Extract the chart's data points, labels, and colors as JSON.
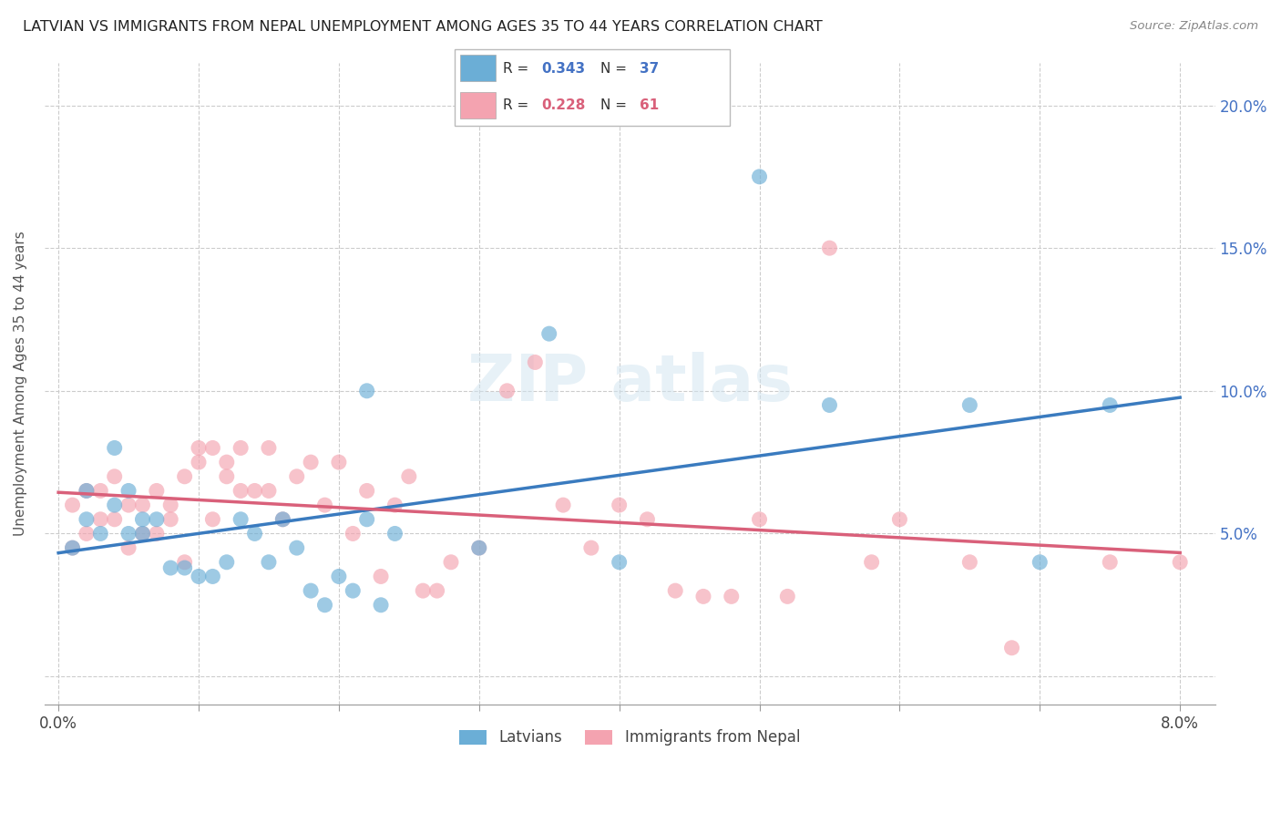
{
  "title": "LATVIAN VS IMMIGRANTS FROM NEPAL UNEMPLOYMENT AMONG AGES 35 TO 44 YEARS CORRELATION CHART",
  "source": "Source: ZipAtlas.com",
  "ylabel": "Unemployment Among Ages 35 to 44 years",
  "y_tick_positions": [
    0.0,
    0.05,
    0.1,
    0.15,
    0.2
  ],
  "y_tick_labels": [
    "",
    "5.0%",
    "10.0%",
    "15.0%",
    "20.0%"
  ],
  "x_tick_positions": [
    0.0,
    0.01,
    0.02,
    0.03,
    0.04,
    0.05,
    0.06,
    0.07,
    0.08
  ],
  "x_tick_labels": [
    "0.0%",
    "",
    "",
    "",
    "",
    "",
    "",
    "",
    "8.0%"
  ],
  "color_latvian": "#6baed6",
  "color_nepal": "#f4a3b0",
  "color_latvian_line": "#3a7bbf",
  "color_nepal_line": "#d9607a",
  "R_latvian": 0.343,
  "N_latvian": 37,
  "R_nepal": 0.228,
  "N_nepal": 61,
  "latvian_x": [
    0.001,
    0.002,
    0.002,
    0.003,
    0.004,
    0.004,
    0.005,
    0.005,
    0.006,
    0.006,
    0.007,
    0.008,
    0.009,
    0.01,
    0.011,
    0.012,
    0.013,
    0.014,
    0.015,
    0.016,
    0.017,
    0.018,
    0.019,
    0.02,
    0.021,
    0.022,
    0.022,
    0.023,
    0.024,
    0.03,
    0.035,
    0.04,
    0.05,
    0.055,
    0.065,
    0.07,
    0.075
  ],
  "latvian_y": [
    0.045,
    0.055,
    0.065,
    0.05,
    0.06,
    0.08,
    0.05,
    0.065,
    0.05,
    0.055,
    0.055,
    0.038,
    0.038,
    0.035,
    0.035,
    0.04,
    0.055,
    0.05,
    0.04,
    0.055,
    0.045,
    0.03,
    0.025,
    0.035,
    0.03,
    0.1,
    0.055,
    0.025,
    0.05,
    0.045,
    0.12,
    0.04,
    0.175,
    0.095,
    0.095,
    0.04,
    0.095
  ],
  "nepal_x": [
    0.001,
    0.001,
    0.002,
    0.002,
    0.003,
    0.003,
    0.004,
    0.004,
    0.005,
    0.005,
    0.006,
    0.006,
    0.007,
    0.007,
    0.008,
    0.008,
    0.009,
    0.009,
    0.01,
    0.01,
    0.011,
    0.011,
    0.012,
    0.012,
    0.013,
    0.013,
    0.014,
    0.015,
    0.015,
    0.016,
    0.017,
    0.018,
    0.019,
    0.02,
    0.021,
    0.022,
    0.023,
    0.024,
    0.025,
    0.026,
    0.027,
    0.028,
    0.03,
    0.032,
    0.034,
    0.036,
    0.038,
    0.04,
    0.042,
    0.044,
    0.046,
    0.048,
    0.05,
    0.052,
    0.055,
    0.058,
    0.06,
    0.065,
    0.068,
    0.075,
    0.08
  ],
  "nepal_y": [
    0.045,
    0.06,
    0.05,
    0.065,
    0.055,
    0.065,
    0.055,
    0.07,
    0.045,
    0.06,
    0.05,
    0.06,
    0.05,
    0.065,
    0.055,
    0.06,
    0.04,
    0.07,
    0.075,
    0.08,
    0.055,
    0.08,
    0.07,
    0.075,
    0.065,
    0.08,
    0.065,
    0.065,
    0.08,
    0.055,
    0.07,
    0.075,
    0.06,
    0.075,
    0.05,
    0.065,
    0.035,
    0.06,
    0.07,
    0.03,
    0.03,
    0.04,
    0.045,
    0.1,
    0.11,
    0.06,
    0.045,
    0.06,
    0.055,
    0.03,
    0.028,
    0.028,
    0.055,
    0.028,
    0.15,
    0.04,
    0.055,
    0.04,
    0.01,
    0.04,
    0.04
  ]
}
